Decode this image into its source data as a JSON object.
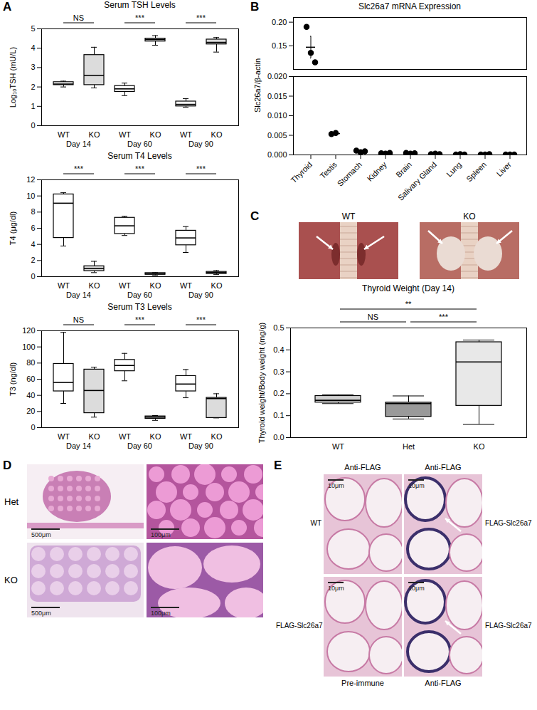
{
  "panels": [
    "A",
    "B",
    "C",
    "D",
    "E"
  ],
  "chart_data": [
    {
      "type": "box",
      "title": "Serum TSH Levels",
      "y_label": "Log₁₀TSH (mU/L)",
      "categories": [
        "Day 14",
        "Day 60",
        "Day 90"
      ],
      "series": [
        {
          "name": "WT",
          "color": "#ffffff",
          "boxes": [
            {
              "min": 2.0,
              "q1": 2.1,
              "median": 2.15,
              "q3": 2.25,
              "max": 2.3
            },
            {
              "min": 1.55,
              "q1": 1.75,
              "median": 1.9,
              "q3": 2.05,
              "max": 2.2
            },
            {
              "min": 0.95,
              "q1": 1.0,
              "median": 1.1,
              "q3": 1.25,
              "max": 1.4
            }
          ]
        },
        {
          "name": "KO",
          "color": "#dcdcdc",
          "boxes": [
            {
              "min": 1.95,
              "q1": 2.1,
              "median": 2.6,
              "q3": 3.65,
              "max": 4.05
            },
            {
              "min": 4.15,
              "q1": 4.35,
              "median": 4.45,
              "q3": 4.5,
              "max": 4.65
            },
            {
              "min": 3.8,
              "q1": 4.2,
              "median": 4.3,
              "q3": 4.45,
              "max": 4.55
            }
          ]
        }
      ],
      "significance": [
        "NS",
        "***",
        "***"
      ],
      "ylim": [
        0,
        5
      ],
      "yticks": [
        0,
        1,
        2,
        3,
        4,
        5
      ]
    },
    {
      "type": "box",
      "title": "Serum T4 Levels",
      "y_label": "T4 (μg/dl)",
      "categories": [
        "Day 14",
        "Day 60",
        "Day 90"
      ],
      "series": [
        {
          "name": "WT",
          "color": "#ffffff",
          "boxes": [
            {
              "min": 3.8,
              "q1": 4.8,
              "median": 9.1,
              "q3": 10.2,
              "max": 10.4
            },
            {
              "min": 5.1,
              "q1": 5.3,
              "median": 6.3,
              "q3": 7.3,
              "max": 7.5
            },
            {
              "min": 3.0,
              "q1": 3.9,
              "median": 4.8,
              "q3": 5.7,
              "max": 6.2
            }
          ]
        },
        {
          "name": "KO",
          "color": "#dcdcdc",
          "boxes": [
            {
              "min": 0.5,
              "q1": 0.7,
              "median": 1.0,
              "q3": 1.3,
              "max": 1.9
            },
            {
              "min": 0.15,
              "q1": 0.25,
              "median": 0.35,
              "q3": 0.45,
              "max": 0.5
            },
            {
              "min": 0.25,
              "q1": 0.35,
              "median": 0.5,
              "q3": 0.6,
              "max": 0.75
            }
          ]
        }
      ],
      "significance": [
        "***",
        "***",
        "***"
      ],
      "ylim": [
        0,
        12
      ],
      "yticks": [
        0,
        2,
        4,
        6,
        8,
        10,
        12
      ]
    },
    {
      "type": "box",
      "title": "Serum T3 Levels",
      "y_label": "T3 (ng/dl)",
      "categories": [
        "Day 14",
        "Day 60",
        "Day 90"
      ],
      "series": [
        {
          "name": "WT",
          "color": "#ffffff",
          "boxes": [
            {
              "min": 30,
              "q1": 45,
              "median": 56,
              "q3": 79,
              "max": 118
            },
            {
              "min": 58,
              "q1": 70,
              "median": 77,
              "q3": 84,
              "max": 92
            },
            {
              "min": 37,
              "q1": 45,
              "median": 54,
              "q3": 64,
              "max": 72
            }
          ]
        },
        {
          "name": "KO",
          "color": "#dcdcdc",
          "boxes": [
            {
              "min": 13,
              "q1": 18,
              "median": 46,
              "q3": 72,
              "max": 75
            },
            {
              "min": 9,
              "q1": 11,
              "median": 13,
              "q3": 14,
              "max": 15
            },
            {
              "min": 12,
              "q1": 12,
              "median": 36,
              "q3": 37,
              "max": 42
            }
          ]
        }
      ],
      "significance": [
        "NS",
        "***",
        "***"
      ],
      "ylim": [
        0,
        120
      ],
      "yticks": [
        0,
        20,
        40,
        60,
        80,
        100,
        120
      ]
    },
    {
      "type": "scatter",
      "title": "Slc26a7 mRNA Expression",
      "y_label": "Slc26a7/β-actin",
      "categories": [
        "Thyroid",
        "Testis",
        "Stomach",
        "Kidney",
        "Brain",
        "Salivary Gland",
        "Lung",
        "Spleen",
        "Liver"
      ],
      "values": [
        [
          0.19,
          0.135,
          0.115
        ],
        [
          0.0053,
          0.0056
        ],
        [
          0.0011,
          0.0007,
          0.0009
        ],
        [
          0.0004,
          0.0003,
          0.0005
        ],
        [
          0.0005,
          0.0003,
          0.0004
        ],
        [
          0.0002,
          0.0003,
          0.0002
        ],
        [
          0.0001,
          0.0002,
          0.0001
        ],
        [
          0.0001,
          0.0001,
          0.0002
        ],
        [
          0.0001,
          0.0001,
          0.0001
        ]
      ],
      "mean": [
        0.147,
        0.00545,
        0.0009,
        0.0004,
        0.0004,
        0.00023,
        0.00013,
        0.00013,
        0.0001
      ],
      "error": [
        0.023,
        0.00015,
        0.0001,
        6e-05,
        6e-05,
        3e-05,
        3e-05,
        3e-05,
        3e-05
      ],
      "color": "#000000",
      "marker": "circle",
      "ylim": [
        0,
        0.02
      ],
      "yticks": [
        {
          "value": 0,
          "label": "0.000"
        },
        {
          "value": 0.005,
          "label": "0.005"
        },
        {
          "value": 0.01,
          "label": "0.010"
        },
        {
          "value": 0.015,
          "label": "0.015"
        },
        {
          "value": 0.02,
          "label": "0.020"
        }
      ],
      "ylim_break": [
        0.1,
        0.21
      ],
      "yticks_break": [
        0.15,
        {
          "value": 0.2,
          "label": "0.20"
        }
      ]
    },
    {
      "type": "box",
      "title": "Thyroid Weight (Day 14)",
      "y_label": "Thyroid weight/Body weight (mg/g)",
      "categories": [
        "WT",
        "Het",
        "KO"
      ],
      "colors": [
        "#d0d0d0",
        "#9a9a9a",
        "#e8e8e8"
      ],
      "boxes": [
        {
          "min": 0.155,
          "q1": 0.16,
          "median": 0.17,
          "q3": 0.19,
          "max": 0.195
        },
        {
          "min": 0.085,
          "q1": 0.095,
          "median": 0.155,
          "q3": 0.16,
          "max": 0.19
        },
        {
          "min": 0.06,
          "q1": 0.145,
          "median": 0.345,
          "q3": 0.435,
          "max": 0.445
        }
      ],
      "comparisons": [
        {
          "pair": [
            "WT",
            "Het"
          ],
          "label": "NS"
        },
        {
          "pair": [
            "Het",
            "KO"
          ],
          "label": "***"
        },
        {
          "pair": [
            "WT",
            "KO"
          ],
          "label": "**"
        }
      ],
      "ylim": [
        0,
        0.5
      ],
      "yticks": [
        {
          "value": 0,
          "label": "0.0"
        },
        {
          "value": 0.1,
          "label": "0.1"
        },
        {
          "value": 0.2,
          "label": "0.2"
        },
        {
          "value": 0.3,
          "label": "0.3"
        },
        {
          "value": 0.4,
          "label": "0.4"
        },
        {
          "value": 0.5,
          "label": "0.5"
        }
      ]
    }
  ],
  "images": {
    "C": [
      {
        "label": "WT"
      },
      {
        "label": "KO"
      }
    ],
    "D": [
      {
        "row": "Het",
        "scale_bars": [
          "500μm",
          "100μm"
        ]
      },
      {
        "row": "KO",
        "scale_bars": [
          "500μm",
          "100μm"
        ]
      }
    ],
    "E": {
      "top": [
        "Anti-FLAG",
        "Anti-FLAG"
      ],
      "left": [
        "WT",
        "FLAG-Slc26a7"
      ],
      "right": [
        "FLAG-Slc26a7",
        "FLAG-Slc26a7"
      ],
      "bottom": [
        "Pre-immune",
        "Anti-FLAG"
      ],
      "scale_bars": [
        "10μm",
        "10μm",
        "10μm",
        "10μm"
      ]
    }
  }
}
